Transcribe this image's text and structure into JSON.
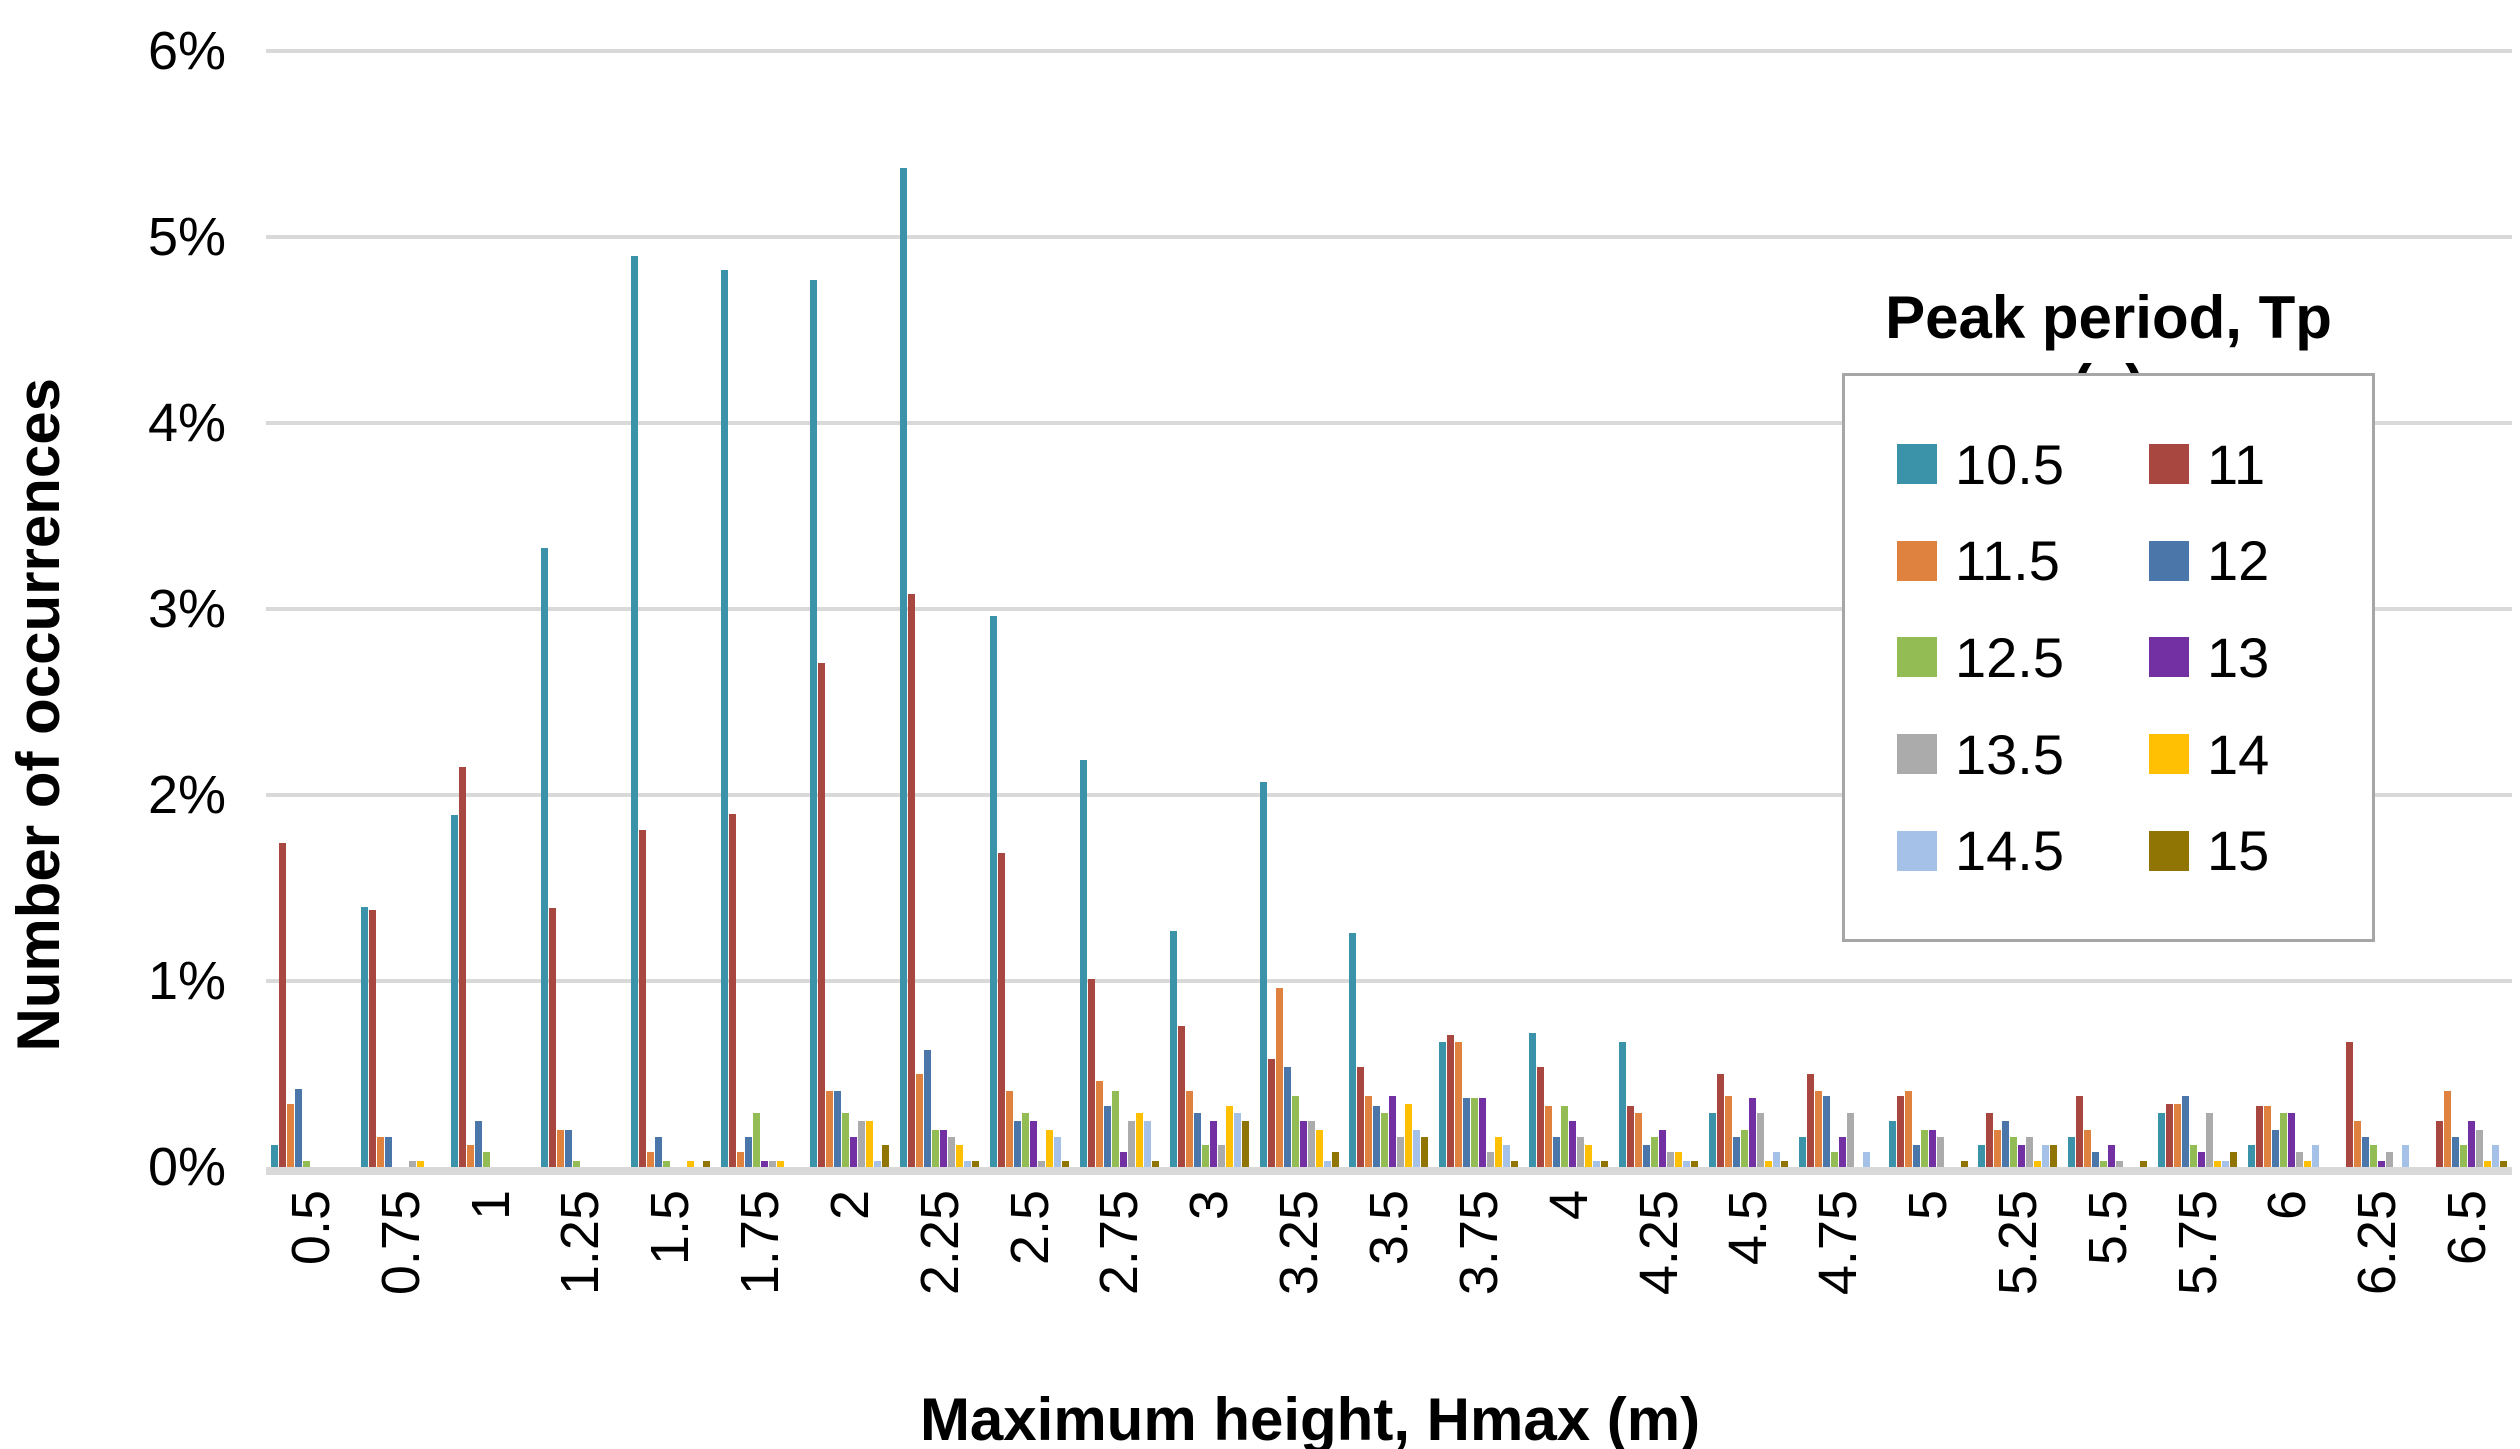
{
  "chart_data": {
    "type": "bar",
    "title": "",
    "xlabel": "Maximum height, Hmax (m)",
    "ylabel": "Number of occurrences",
    "legend_title": "Peak period, Tp (s)",
    "legend_position": "upper right",
    "grid": true,
    "ylim": [
      0,
      6
    ],
    "y_unit": "%",
    "y_tick_labels": [
      "0%",
      "1%",
      "2%",
      "3%",
      "4%",
      "5%",
      "6%"
    ],
    "categories": [
      "0.5",
      "0.75",
      "1",
      "1.25",
      "1.5",
      "1.75",
      "2",
      "2.25",
      "2.5",
      "2.75",
      "3",
      "3.25",
      "3.5",
      "3.75",
      "4",
      "4.25",
      "4.5",
      "4.75",
      "5",
      "5.25",
      "5.5",
      "5.75",
      "6",
      "6.25",
      "6.5"
    ],
    "series": [
      {
        "name": "10.5",
        "color": "#3A93A9",
        "values": [
          0.12,
          1.4,
          1.89,
          3.33,
          4.9,
          4.82,
          4.77,
          5.37,
          2.96,
          2.19,
          1.27,
          2.07,
          1.26,
          0.67,
          0.72,
          0.67,
          0.29,
          0.16,
          0.25,
          0.12,
          0.16,
          0.29,
          0.12,
          0,
          0
        ]
      },
      {
        "name": "11",
        "color": "#A7473F",
        "values": [
          1.74,
          1.38,
          2.15,
          1.39,
          1.81,
          1.9,
          2.71,
          3.08,
          1.69,
          1.01,
          0.76,
          0.58,
          0.54,
          0.71,
          0.54,
          0.33,
          0.5,
          0.5,
          0.38,
          0.29,
          0.38,
          0.34,
          0.33,
          0.67,
          0.25
        ]
      },
      {
        "name": "11.5",
        "color": "#E0823F",
        "values": [
          0.34,
          0.16,
          0.12,
          0.2,
          0.08,
          0.08,
          0.41,
          0.5,
          0.41,
          0.46,
          0.41,
          0.96,
          0.38,
          0.67,
          0.33,
          0.29,
          0.38,
          0.41,
          0.41,
          0.2,
          0.2,
          0.34,
          0.33,
          0.25,
          0.41
        ]
      },
      {
        "name": "12",
        "color": "#4B76A9",
        "values": [
          0.42,
          0.16,
          0.25,
          0.2,
          0.16,
          0.16,
          0.41,
          0.63,
          0.25,
          0.33,
          0.29,
          0.54,
          0.33,
          0.37,
          0.16,
          0.12,
          0.16,
          0.38,
          0.12,
          0.25,
          0.08,
          0.38,
          0.2,
          0.16,
          0.16
        ]
      },
      {
        "name": "12.5",
        "color": "#94BC55",
        "values": [
          0.03,
          0,
          0.08,
          0.03,
          0.03,
          0.29,
          0.29,
          0.2,
          0.29,
          0.41,
          0.12,
          0.38,
          0.29,
          0.37,
          0.33,
          0.16,
          0.2,
          0.08,
          0.2,
          0.16,
          0.03,
          0.12,
          0.29,
          0.12,
          0.12
        ]
      },
      {
        "name": "13",
        "color": "#7330A2",
        "values": [
          0,
          0,
          0,
          0,
          0,
          0.03,
          0.16,
          0.2,
          0.25,
          0.08,
          0.25,
          0.25,
          0.38,
          0.37,
          0.25,
          0.2,
          0.37,
          0.16,
          0.2,
          0.12,
          0.12,
          0.08,
          0.29,
          0.03,
          0.25
        ]
      },
      {
        "name": "13.5",
        "color": "#ABABAB",
        "values": [
          0,
          0.03,
          0,
          0,
          0,
          0.03,
          0.25,
          0.16,
          0.03,
          0.25,
          0.12,
          0.25,
          0.16,
          0.08,
          0.16,
          0.08,
          0.29,
          0.29,
          0.16,
          0.16,
          0.03,
          0.29,
          0.08,
          0.08,
          0.2
        ]
      },
      {
        "name": "14",
        "color": "#FFC003",
        "values": [
          0,
          0.03,
          0,
          0,
          0.03,
          0.03,
          0.25,
          0.12,
          0.2,
          0.29,
          0.33,
          0.2,
          0.34,
          0.16,
          0.12,
          0.08,
          0.03,
          0,
          0,
          0.03,
          0,
          0.03,
          0.03,
          0,
          0.03
        ]
      },
      {
        "name": "14.5",
        "color": "#A6C1E8",
        "values": [
          0,
          0,
          0,
          0,
          0,
          0,
          0.03,
          0.03,
          0.16,
          0.25,
          0.29,
          0.03,
          0.2,
          0.12,
          0.03,
          0.03,
          0.08,
          0.08,
          0,
          0.12,
          0,
          0.03,
          0.12,
          0.12,
          0.12
        ]
      },
      {
        "name": "15",
        "color": "#907404",
        "values": [
          0,
          0,
          0,
          0,
          0.03,
          0,
          0.12,
          0.03,
          0.03,
          0.03,
          0.25,
          0.08,
          0.16,
          0.03,
          0.03,
          0.03,
          0.03,
          0,
          0.03,
          0.12,
          0.03,
          0.08,
          0,
          0,
          0.03
        ]
      }
    ],
    "style": {
      "gridline_color": "#d9d9d9",
      "axis_band_color": "#d9d9d9",
      "text_color": "#000000"
    }
  }
}
